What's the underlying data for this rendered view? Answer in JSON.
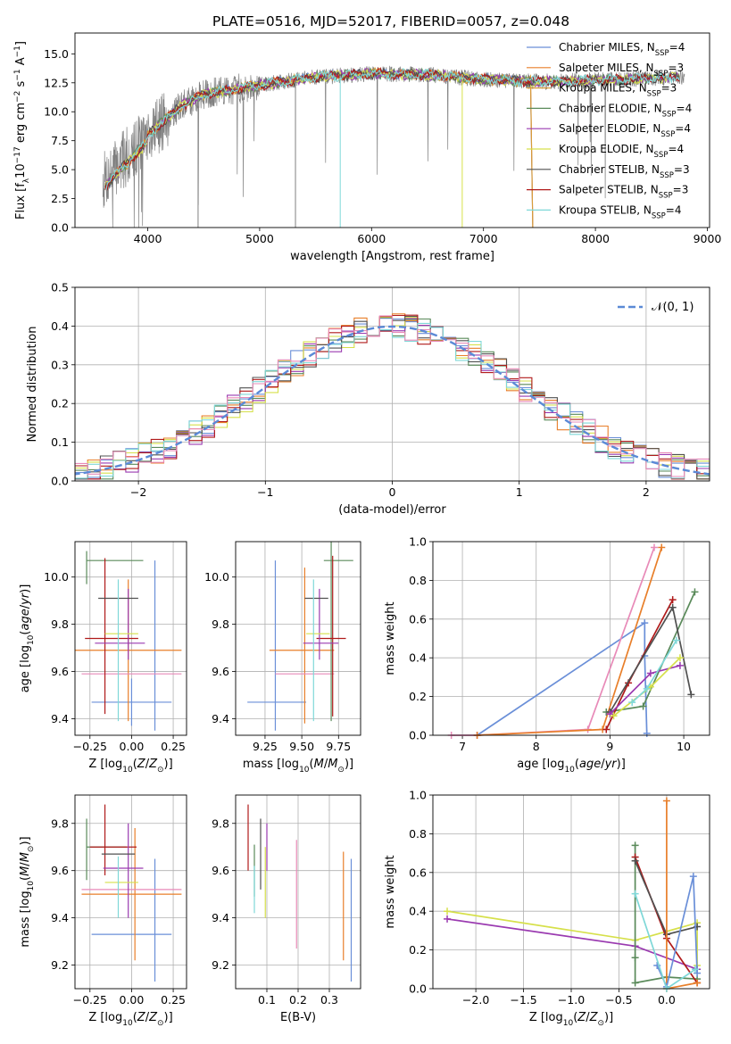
{
  "figure": {
    "title": "PLATE=0516, MJD=52017, FIBERID=0057, z=0.048"
  },
  "chart_data": [
    {
      "id": "spectrum",
      "type": "line",
      "xlabel": "wavelength [Angstrom, rest frame]",
      "ylabel": "Flux [f_λ 10^-17 erg cm^-2 s^-1 A^-1]",
      "xlim": [
        3350,
        9020
      ],
      "ylim": [
        0,
        16.8
      ],
      "xticks": [
        4000,
        5000,
        6000,
        7000,
        8000,
        9000
      ],
      "yticks": [
        0.0,
        2.5,
        5.0,
        7.5,
        10.0,
        12.5,
        15.0
      ],
      "grid": false,
      "legend_position": "upper-right",
      "observed_spectrum": {
        "color": "#808080",
        "range": [
          3600,
          8800
        ],
        "trend": [
          [
            3600,
            4.0
          ],
          [
            3800,
            6.0
          ],
          [
            4000,
            8.0
          ],
          [
            4300,
            10.5
          ],
          [
            4500,
            11.5
          ],
          [
            5000,
            12.3
          ],
          [
            5500,
            13.0
          ],
          [
            6000,
            13.3
          ],
          [
            6500,
            13.2
          ],
          [
            7000,
            12.8
          ],
          [
            7500,
            12.6
          ],
          [
            8000,
            12.7
          ],
          [
            8500,
            12.9
          ],
          [
            8800,
            13.0
          ]
        ]
      },
      "series": [
        {
          "name": "Chabrier MILES",
          "nssp": "4",
          "color": "#6a8fd8"
        },
        {
          "name": "Salpeter MILES",
          "nssp": "3",
          "color": "#e87f2a"
        },
        {
          "name": "Kroupa MILES",
          "nssp": "3",
          "color": "#d79c3a"
        },
        {
          "name": "Chabrier ELODIE",
          "nssp": "4",
          "color": "#5a8a5a"
        },
        {
          "name": "Salpeter ELODIE",
          "nssp": "4",
          "color": "#9a3ab0"
        },
        {
          "name": "Kroupa ELODIE",
          "nssp": "4",
          "color": "#d6e04a"
        },
        {
          "name": "Chabrier STELIB",
          "nssp": "3",
          "color": "#505050"
        },
        {
          "name": "Salpeter STELIB",
          "nssp": "3",
          "color": "#b01a1a"
        },
        {
          "name": "Kroupa STELIB",
          "nssp": "4",
          "color": "#7fd8d8"
        }
      ]
    },
    {
      "id": "residuals",
      "type": "histogram",
      "xlabel": "(data-model)/error",
      "ylabel": "Normed distribution",
      "xlim": [
        -2.5,
        2.5
      ],
      "ylim": [
        0,
        0.5
      ],
      "xticks": [
        -2,
        -1,
        0,
        1,
        2
      ],
      "yticks": [
        0.0,
        0.1,
        0.2,
        0.3,
        0.4,
        0.5
      ],
      "grid": true,
      "bin_width": 0.1,
      "legend": [
        {
          "label": "𝒩(0, 1)",
          "color": "#5b8ad6",
          "style": "dashed"
        }
      ],
      "legend_position": "upper-right",
      "histogram_colors": [
        "#6a8fd8",
        "#e87f2a",
        "#5a8a5a",
        "#9a3ab0",
        "#d6e04a",
        "#505050",
        "#b01a1a",
        "#7fd8d8",
        "#e88ab8"
      ]
    },
    {
      "id": "age_vs_Z",
      "type": "errorbar",
      "xlabel": "Z [log10(Z/Z⊙)]",
      "ylabel": "age [log10(age/yr)]",
      "xlim": [
        -0.34,
        0.33
      ],
      "ylim": [
        9.33,
        10.15
      ],
      "xticks": [
        -0.25,
        0.0,
        0.25
      ],
      "yticks": [
        9.4,
        9.6,
        9.8,
        10.0
      ],
      "grid": true,
      "points": [
        {
          "color": "#6a8fd8",
          "x": 0.0,
          "xerr": 0.24,
          "y": 9.47,
          "yerr": 0.1
        },
        {
          "color": "#6a8fd8",
          "x": 0.14,
          "xerr": 0.0,
          "y": 9.71,
          "yerr": 0.36
        },
        {
          "color": "#e87f2a",
          "x": -0.02,
          "xerr": 0.32,
          "y": 9.69,
          "yerr": 0.3
        },
        {
          "color": "#e88ab8",
          "x": 0.0,
          "xerr": 0.3,
          "y": 9.59,
          "yerr": 0.0
        },
        {
          "color": "#5a8a5a",
          "x": -0.1,
          "xerr": 0.17,
          "y": 10.07,
          "yerr": 0.0
        },
        {
          "color": "#5a8a5a",
          "x": -0.27,
          "xerr": 0.0,
          "y": 10.04,
          "yerr": 0.07
        },
        {
          "color": "#b01a1a",
          "x": -0.16,
          "xerr": 0.0,
          "y": 9.75,
          "yerr": 0.33
        },
        {
          "color": "#b01a1a",
          "x": -0.12,
          "xerr": 0.16,
          "y": 9.74,
          "yerr": 0.0
        },
        {
          "color": "#9a3ab0",
          "x": -0.07,
          "xerr": 0.15,
          "y": 9.72,
          "yerr": 0.0
        },
        {
          "color": "#9a3ab0",
          "x": -0.02,
          "xerr": 0.0,
          "y": 9.8,
          "yerr": 0.15
        },
        {
          "color": "#505050",
          "x": -0.08,
          "xerr": 0.12,
          "y": 9.91,
          "yerr": 0.0
        },
        {
          "color": "#d6e04a",
          "x": -0.06,
          "xerr": 0.1,
          "y": 9.76,
          "yerr": 0.0
        },
        {
          "color": "#7fd8d8",
          "x": -0.08,
          "xerr": 0.0,
          "y": 9.69,
          "yerr": 0.3
        }
      ]
    },
    {
      "id": "age_vs_mass",
      "type": "errorbar",
      "xlabel": "mass [log10(M/M⊙)]",
      "ylabel": "",
      "xlim": [
        9.05,
        9.9
      ],
      "ylim": [
        9.33,
        10.15
      ],
      "xticks": [
        9.25,
        9.5,
        9.75
      ],
      "yticks": [
        9.4,
        9.6,
        9.8,
        10.0
      ],
      "grid": true,
      "points": [
        {
          "color": "#6a8fd8",
          "x": 9.33,
          "xerr": 0.2,
          "y": 9.47,
          "yerr": 0.0
        },
        {
          "color": "#6a8fd8",
          "x": 9.32,
          "xerr": 0.0,
          "y": 9.71,
          "yerr": 0.36
        },
        {
          "color": "#e87f2a",
          "x": 9.5,
          "xerr": 0.22,
          "y": 9.69,
          "yerr": 0.0
        },
        {
          "color": "#e87f2a",
          "x": 9.52,
          "xerr": 0.0,
          "y": 9.71,
          "yerr": 0.33
        },
        {
          "color": "#e88ab8",
          "x": 9.52,
          "xerr": 0.2,
          "y": 9.59,
          "yerr": 0.0
        },
        {
          "color": "#5a8a5a",
          "x": 9.75,
          "xerr": 0.1,
          "y": 10.07,
          "yerr": 0.0
        },
        {
          "color": "#5a8a5a",
          "x": 9.7,
          "xerr": 0.0,
          "y": 9.77,
          "yerr": 0.38
        },
        {
          "color": "#b01a1a",
          "x": 9.7,
          "xerr": 0.1,
          "y": 9.74,
          "yerr": 0.0
        },
        {
          "color": "#b01a1a",
          "x": 9.71,
          "xerr": 0.0,
          "y": 9.75,
          "yerr": 0.34
        },
        {
          "color": "#9a3ab0",
          "x": 9.63,
          "xerr": 0.12,
          "y": 9.72,
          "yerr": 0.0
        },
        {
          "color": "#9a3ab0",
          "x": 9.62,
          "xerr": 0.0,
          "y": 9.8,
          "yerr": 0.15
        },
        {
          "color": "#505050",
          "x": 9.6,
          "xerr": 0.08,
          "y": 9.91,
          "yerr": 0.0
        },
        {
          "color": "#d6e04a",
          "x": 9.61,
          "xerr": 0.08,
          "y": 9.76,
          "yerr": 0.0
        },
        {
          "color": "#7fd8d8",
          "x": 9.58,
          "xerr": 0.0,
          "y": 9.69,
          "yerr": 0.3
        }
      ]
    },
    {
      "id": "mass_weight_vs_age",
      "type": "line",
      "xlabel": "age  [log10(age/yr)]",
      "ylabel": "mass weight",
      "xlim": [
        6.6,
        10.35
      ],
      "ylim": [
        0,
        1.0
      ],
      "xticks": [
        7,
        8,
        9,
        10
      ],
      "yticks": [
        0.0,
        0.2,
        0.4,
        0.6,
        0.8,
        1.0
      ],
      "grid": true,
      "series": [
        {
          "color": "#6a8fd8",
          "x": [
            7.2,
            9.47,
            9.47,
            9.5
          ],
          "y": [
            0.0,
            0.58,
            0.41,
            0.01
          ]
        },
        {
          "color": "#e88ab8",
          "x": [
            6.85,
            7.2,
            8.7,
            9.6
          ],
          "y": [
            0.0,
            0.0,
            0.03,
            0.97
          ]
        },
        {
          "color": "#e87f2a",
          "x": [
            7.2,
            8.9,
            9.7
          ],
          "y": [
            0.0,
            0.03,
            0.97
          ]
        },
        {
          "color": "#5a8a5a",
          "x": [
            8.95,
            9.45,
            10.15
          ],
          "y": [
            0.12,
            0.15,
            0.74
          ]
        },
        {
          "color": "#b01a1a",
          "x": [
            8.95,
            9.25,
            9.85
          ],
          "y": [
            0.03,
            0.27,
            0.7
          ]
        },
        {
          "color": "#505050",
          "x": [
            9.0,
            9.85,
            10.1
          ],
          "y": [
            0.12,
            0.66,
            0.21
          ]
        },
        {
          "color": "#9a3ab0",
          "x": [
            9.0,
            9.55,
            9.95
          ],
          "y": [
            0.11,
            0.32,
            0.36
          ]
        },
        {
          "color": "#d6e04a",
          "x": [
            9.05,
            9.55,
            9.95
          ],
          "y": [
            0.1,
            0.25,
            0.4
          ]
        },
        {
          "color": "#7fd8d8",
          "x": [
            9.3,
            9.5,
            9.9
          ],
          "y": [
            0.17,
            0.24,
            0.49
          ]
        }
      ]
    },
    {
      "id": "mass_vs_Z",
      "type": "errorbar",
      "xlabel": "Z [log10(Z/Z⊙)]",
      "ylabel": "mass [log10(M/M⊙)]",
      "xlim": [
        -0.34,
        0.33
      ],
      "ylim": [
        9.1,
        9.92
      ],
      "xticks": [
        -0.25,
        0.0,
        0.25
      ],
      "yticks": [
        9.2,
        9.4,
        9.6,
        9.8
      ],
      "grid": true,
      "points": [
        {
          "color": "#6a8fd8",
          "x": 0.0,
          "xerr": 0.24,
          "y": 9.33,
          "yerr": 0.0
        },
        {
          "color": "#6a8fd8",
          "x": 0.14,
          "xerr": 0.0,
          "y": 9.39,
          "yerr": 0.26
        },
        {
          "color": "#e87f2a",
          "x": 0.0,
          "xerr": 0.3,
          "y": 9.5,
          "yerr": 0.0
        },
        {
          "color": "#e87f2a",
          "x": 0.02,
          "xerr": 0.0,
          "y": 9.5,
          "yerr": 0.28
        },
        {
          "color": "#e88ab8",
          "x": 0.0,
          "xerr": 0.3,
          "y": 9.52,
          "yerr": 0.0
        },
        {
          "color": "#5a8a5a",
          "x": -0.15,
          "xerr": 0.12,
          "y": 9.7,
          "yerr": 0.0
        },
        {
          "color": "#5a8a5a",
          "x": -0.27,
          "xerr": 0.0,
          "y": 9.69,
          "yerr": 0.13
        },
        {
          "color": "#b01a1a",
          "x": -0.16,
          "xerr": 0.0,
          "y": 9.73,
          "yerr": 0.15
        },
        {
          "color": "#b01a1a",
          "x": -0.11,
          "xerr": 0.14,
          "y": 9.7,
          "yerr": 0.0
        },
        {
          "color": "#9a3ab0",
          "x": -0.05,
          "xerr": 0.12,
          "y": 9.61,
          "yerr": 0.0
        },
        {
          "color": "#9a3ab0",
          "x": -0.02,
          "xerr": 0.0,
          "y": 9.6,
          "yerr": 0.2
        },
        {
          "color": "#505050",
          "x": -0.08,
          "xerr": 0.1,
          "y": 9.67,
          "yerr": 0.0
        },
        {
          "color": "#d6e04a",
          "x": -0.06,
          "xerr": 0.1,
          "y": 9.55,
          "yerr": 0.0
        },
        {
          "color": "#7fd8d8",
          "x": -0.08,
          "xerr": 0.0,
          "y": 9.53,
          "yerr": 0.13
        }
      ]
    },
    {
      "id": "mass_vs_EBV",
      "type": "errorbar",
      "xlabel": "E(B-V)",
      "ylabel": "",
      "xlim": [
        0.0,
        0.4
      ],
      "ylim": [
        9.1,
        9.92
      ],
      "xticks": [
        0.1,
        0.2,
        0.3
      ],
      "yticks": [
        9.2,
        9.4,
        9.6,
        9.8
      ],
      "grid": true,
      "points": [
        {
          "color": "#b01a1a",
          "x": 0.04,
          "xerr": 0.0,
          "y": 9.74,
          "yerr": 0.14
        },
        {
          "color": "#5a8a5a",
          "x": 0.06,
          "xerr": 0.0,
          "y": 9.6,
          "yerr": 0.11
        },
        {
          "color": "#7fd8d8",
          "x": 0.06,
          "xerr": 0.0,
          "y": 9.52,
          "yerr": 0.1
        },
        {
          "color": "#505050",
          "x": 0.08,
          "xerr": 0.0,
          "y": 9.67,
          "yerr": 0.15
        },
        {
          "color": "#d6e04a",
          "x": 0.095,
          "xerr": 0.0,
          "y": 9.55,
          "yerr": 0.15
        },
        {
          "color": "#9a3ab0",
          "x": 0.1,
          "xerr": 0.0,
          "y": 9.7,
          "yerr": 0.1
        },
        {
          "color": "#e88ab8",
          "x": 0.195,
          "xerr": 0.0,
          "y": 9.5,
          "yerr": 0.23
        },
        {
          "color": "#e87f2a",
          "x": 0.345,
          "xerr": 0.0,
          "y": 9.45,
          "yerr": 0.23
        },
        {
          "color": "#6a8fd8",
          "x": 0.37,
          "xerr": 0.0,
          "y": 9.39,
          "yerr": 0.26
        }
      ]
    },
    {
      "id": "mass_weight_vs_Z",
      "type": "line",
      "xlabel": "Z [log10(Z/Z⊙)]",
      "ylabel": "mass weight",
      "xlim": [
        -2.45,
        0.45
      ],
      "ylim": [
        0,
        1.0
      ],
      "xticks": [
        -2.0,
        -1.5,
        -1.0,
        -0.5,
        0.0
      ],
      "yticks": [
        0.0,
        0.2,
        0.4,
        0.6,
        0.8,
        1.0
      ],
      "grid": true,
      "series": [
        {
          "color": "#d6e04a",
          "x": [
            -2.3,
            -0.33,
            0.32,
            0.32
          ],
          "y": [
            0.4,
            0.25,
            0.34,
            0.12
          ]
        },
        {
          "color": "#9a3ab0",
          "x": [
            -2.3,
            -0.33,
            0.32
          ],
          "y": [
            0.36,
            0.22,
            0.1
          ]
        },
        {
          "color": "#5a8a5a",
          "x": [
            -0.33,
            -0.33,
            -0.33,
            0.0,
            0.32
          ],
          "y": [
            0.74,
            0.16,
            0.03,
            0.06,
            0.05
          ]
        },
        {
          "color": "#b01a1a",
          "x": [
            -0.33,
            0.0,
            0.32
          ],
          "y": [
            0.68,
            0.26,
            0.03
          ]
        },
        {
          "color": "#505050",
          "x": [
            -0.33,
            0.0,
            0.32
          ],
          "y": [
            0.66,
            0.28,
            0.32
          ]
        },
        {
          "color": "#e87f2a",
          "x": [
            0.0,
            0.0,
            0.32
          ],
          "y": [
            0.97,
            0.0,
            0.03
          ]
        },
        {
          "color": "#6a8fd8",
          "x": [
            -0.1,
            0.0,
            0.28,
            0.32
          ],
          "y": [
            0.12,
            0.01,
            0.58,
            0.08
          ]
        },
        {
          "color": "#7fd8d8",
          "x": [
            -0.33,
            0.0,
            0.3
          ],
          "y": [
            0.49,
            0.0,
            0.1
          ]
        }
      ]
    }
  ]
}
